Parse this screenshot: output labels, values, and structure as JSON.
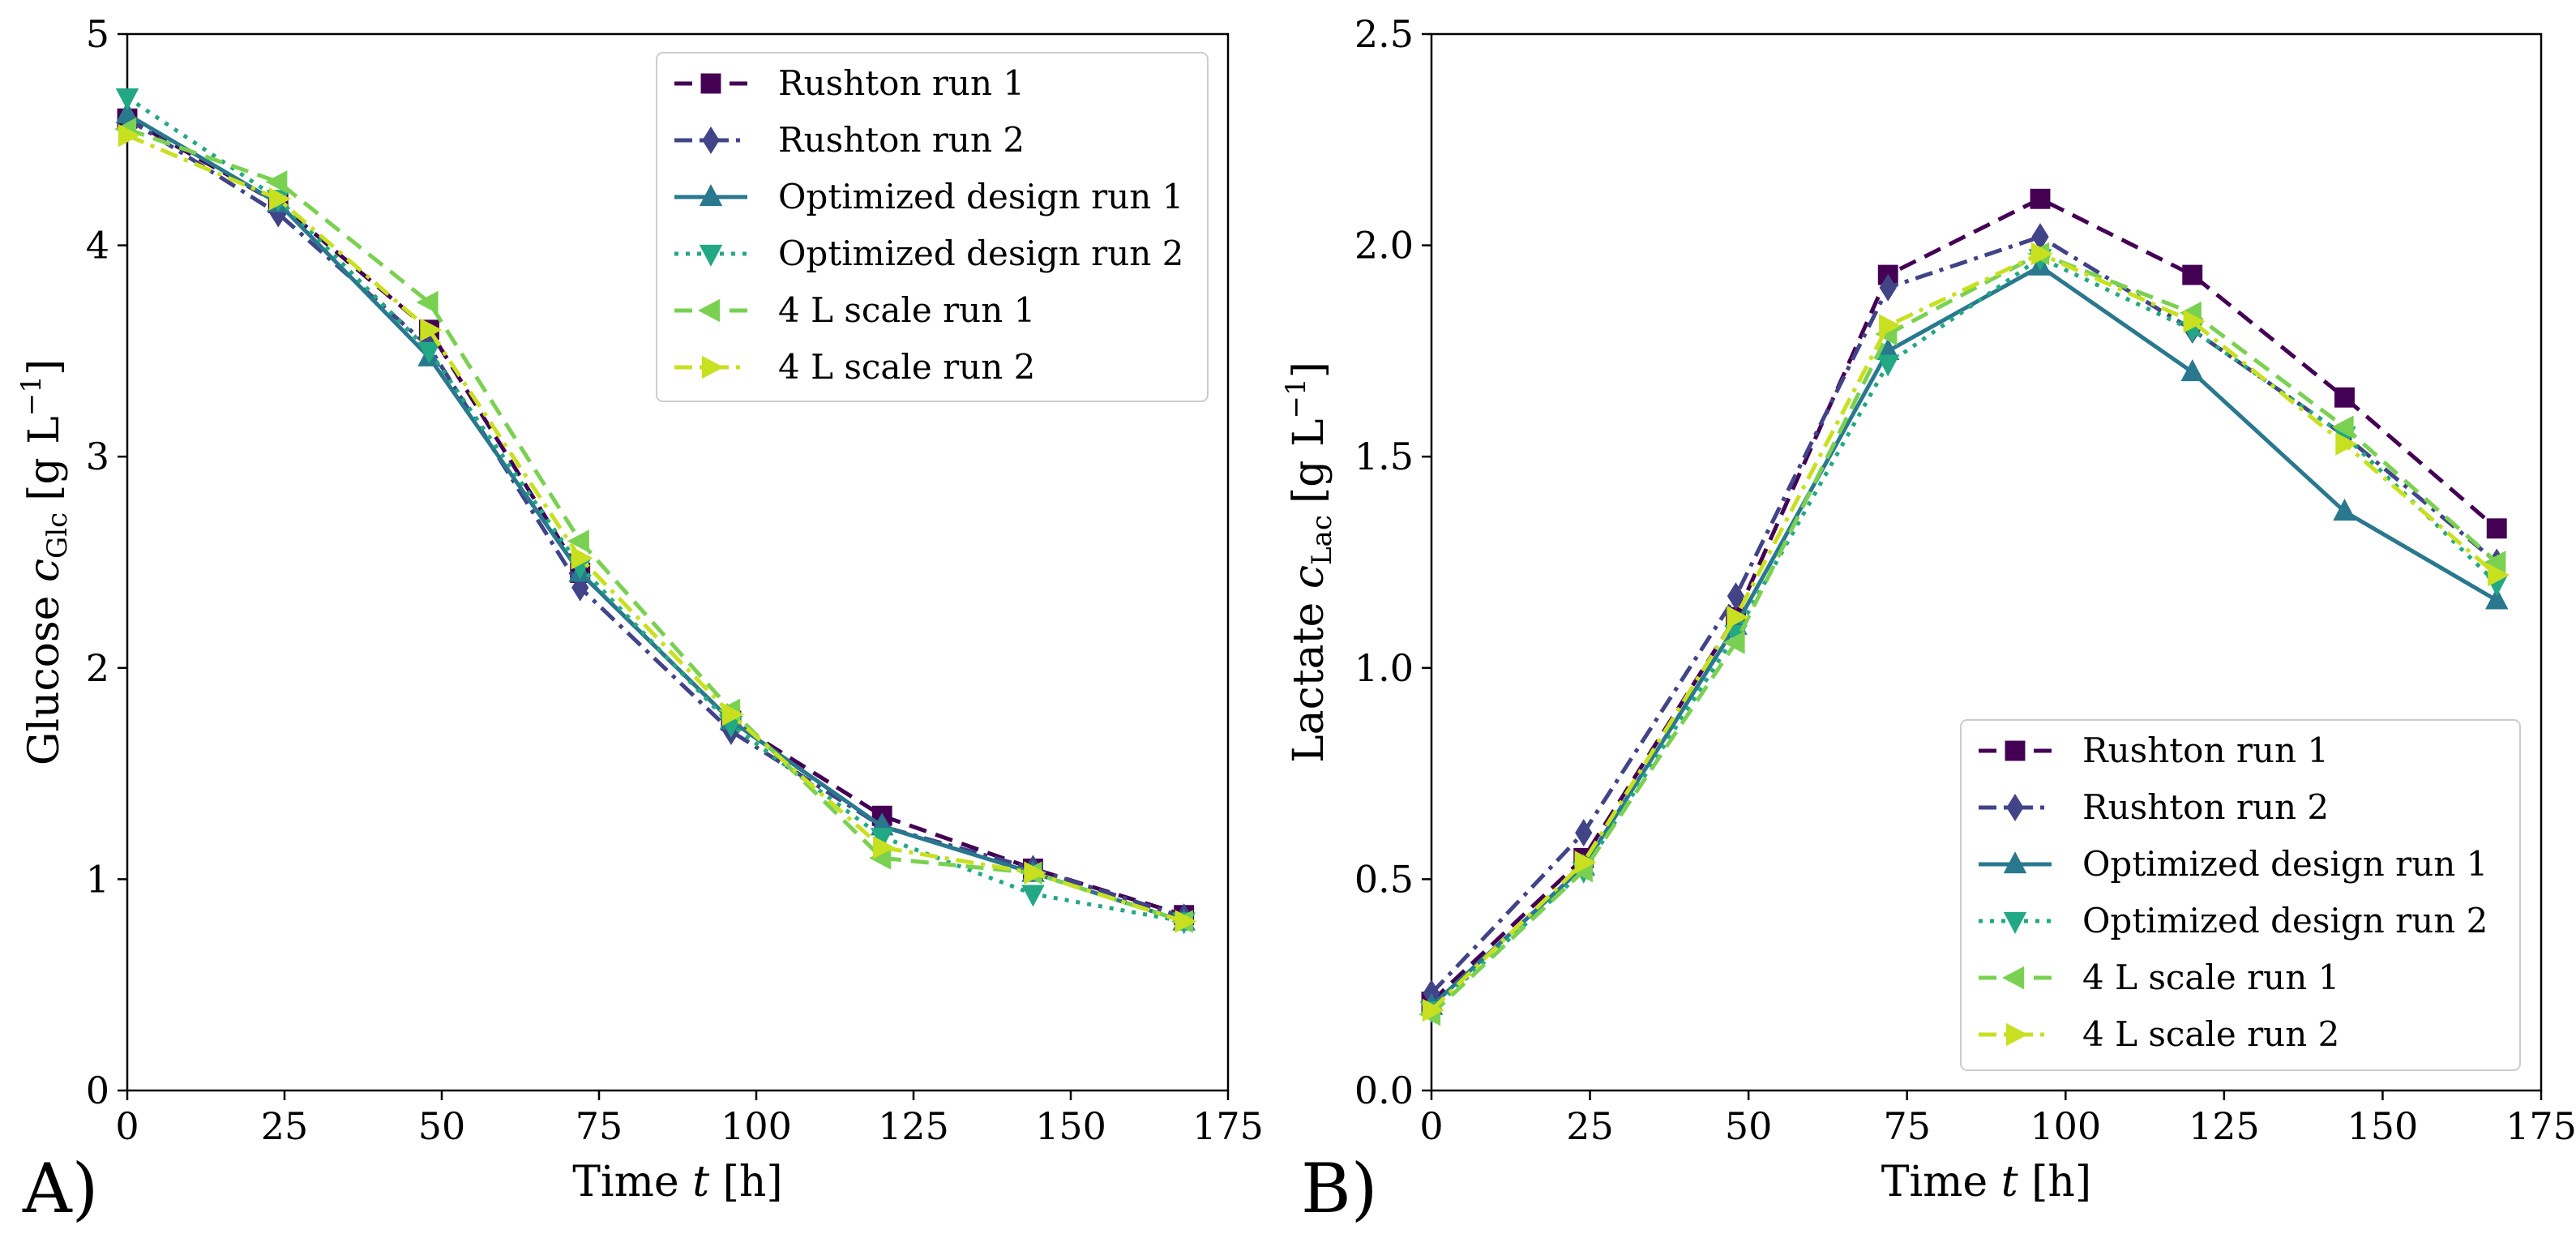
{
  "chart_data": [
    {
      "type": "line",
      "panel_label": "A)",
      "xlabel": "Time",
      "xlabel_var": "t",
      "xlabel_unit": "[h]",
      "ylabel": "Glucose",
      "ylabel_var": "c",
      "ylabel_sub": "Glc",
      "ylabel_unit_pre": "[g L",
      "ylabel_unit_sup": "−1",
      "ylabel_unit_post": "]",
      "xlim": [
        0,
        175
      ],
      "ylim": [
        0,
        5
      ],
      "xticks": [
        0,
        25,
        50,
        75,
        100,
        125,
        150,
        175
      ],
      "yticks": [
        0,
        1,
        2,
        3,
        4,
        5
      ],
      "ytick_labels": [
        "0",
        "1",
        "2",
        "3",
        "4",
        "5"
      ],
      "legend_position": "top-right",
      "x": [
        0,
        24,
        48,
        72,
        96,
        120,
        144,
        168
      ],
      "series": [
        {
          "name": "Rushton run 1",
          "color": "#440154",
          "dash": "dashed",
          "marker": "square",
          "values": [
            4.6,
            4.2,
            3.6,
            2.45,
            1.75,
            1.3,
            1.05,
            0.83
          ]
        },
        {
          "name": "Rushton run 2",
          "color": "#414487",
          "dash": "dashdot",
          "marker": "diamond",
          "values": [
            4.6,
            4.15,
            3.52,
            2.38,
            1.7,
            1.25,
            1.05,
            0.82
          ]
        },
        {
          "name": "Optimized design run 1",
          "color": "#2a788e",
          "dash": "solid",
          "marker": "triangle-up",
          "values": [
            4.62,
            4.2,
            3.47,
            2.45,
            1.75,
            1.25,
            1.03,
            0.8
          ]
        },
        {
          "name": "Optimized design run 2",
          "color": "#22a884",
          "dash": "dotted",
          "marker": "triangle-down",
          "values": [
            4.7,
            4.22,
            3.5,
            2.48,
            1.73,
            1.2,
            0.93,
            0.8
          ]
        },
        {
          "name": "4 L scale run 1",
          "color": "#7ad151",
          "dash": "dashed",
          "marker": "triangle-left",
          "values": [
            4.55,
            4.3,
            3.73,
            2.6,
            1.8,
            1.1,
            1.03,
            0.8
          ]
        },
        {
          "name": "4 L scale run 2",
          "color": "#c8e020",
          "dash": "dashdot",
          "marker": "triangle-right",
          "values": [
            4.52,
            4.22,
            3.6,
            2.52,
            1.78,
            1.15,
            1.03,
            0.8
          ]
        }
      ]
    },
    {
      "type": "line",
      "panel_label": "B)",
      "xlabel": "Time",
      "xlabel_var": "t",
      "xlabel_unit": "[h]",
      "ylabel": "Lactate",
      "ylabel_var": "c",
      "ylabel_sub": "Lac",
      "ylabel_unit_pre": "[g L",
      "ylabel_unit_sup": "−1",
      "ylabel_unit_post": "]",
      "xlim": [
        0,
        175
      ],
      "ylim": [
        0,
        2.5
      ],
      "xticks": [
        0,
        25,
        50,
        75,
        100,
        125,
        150,
        175
      ],
      "yticks": [
        0,
        0.5,
        1.0,
        1.5,
        2.0,
        2.5
      ],
      "ytick_labels": [
        "0.0",
        "0.5",
        "1.0",
        "1.5",
        "2.0",
        "2.5"
      ],
      "legend_position": "bottom-right",
      "x": [
        0,
        24,
        48,
        72,
        96,
        120,
        144,
        168
      ],
      "series": [
        {
          "name": "Rushton run 1",
          "color": "#440154",
          "dash": "dashed",
          "marker": "square",
          "values": [
            0.21,
            0.55,
            1.12,
            1.93,
            2.11,
            1.93,
            1.64,
            1.33
          ]
        },
        {
          "name": "Rushton run 2",
          "color": "#414487",
          "dash": "dashdot",
          "marker": "diamond",
          "values": [
            0.23,
            0.61,
            1.17,
            1.9,
            2.02,
            1.8,
            1.55,
            1.25
          ]
        },
        {
          "name": "Optimized design run 1",
          "color": "#2a788e",
          "dash": "solid",
          "marker": "triangle-up",
          "values": [
            0.2,
            0.53,
            1.1,
            1.75,
            1.95,
            1.7,
            1.37,
            1.16
          ]
        },
        {
          "name": "Optimized design run 2",
          "color": "#22a884",
          "dash": "dotted",
          "marker": "triangle-down",
          "values": [
            0.19,
            0.52,
            1.08,
            1.72,
            1.97,
            1.8,
            1.55,
            1.2
          ]
        },
        {
          "name": "4 L scale run 1",
          "color": "#7ad151",
          "dash": "dashed",
          "marker": "triangle-left",
          "values": [
            0.18,
            0.52,
            1.06,
            1.79,
            1.98,
            1.84,
            1.57,
            1.25
          ]
        },
        {
          "name": "4 L scale run 2",
          "color": "#c8e020",
          "dash": "dashdot",
          "marker": "triangle-right",
          "values": [
            0.19,
            0.54,
            1.12,
            1.81,
            1.98,
            1.82,
            1.53,
            1.22
          ]
        }
      ]
    }
  ]
}
